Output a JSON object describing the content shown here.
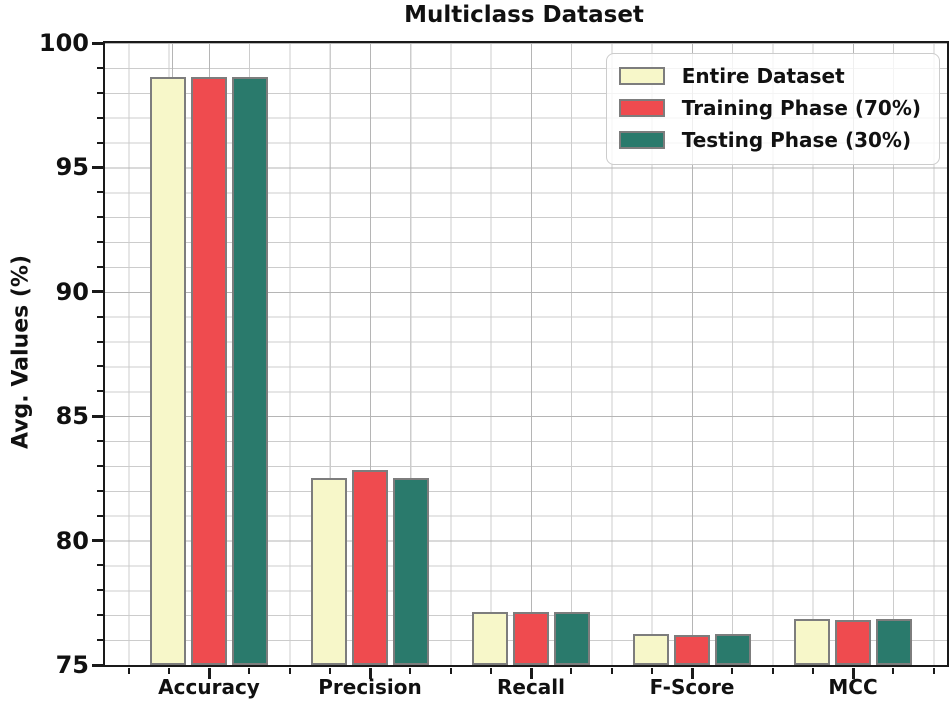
{
  "chart_data": {
    "type": "bar",
    "title": "Multiclass Dataset",
    "xlabel": "",
    "ylabel": "Avg. Values (%)",
    "categories": [
      "Accuracy",
      "Precision",
      "Recall",
      "F-Score",
      "MCC"
    ],
    "series": [
      {
        "name": "Entire Dataset",
        "color": "#f7f7c9",
        "values": [
          98.65,
          82.5,
          77.15,
          76.25,
          76.85
        ]
      },
      {
        "name": "Training Phase (70%)",
        "color": "#ef4b4f",
        "values": [
          98.65,
          82.85,
          77.15,
          76.2,
          76.8
        ]
      },
      {
        "name": "Testing Phase (30%)",
        "color": "#2a7a6c",
        "values": [
          98.65,
          82.5,
          77.15,
          76.25,
          76.85
        ]
      }
    ],
    "ylim": [
      75,
      100
    ],
    "yticks": [
      75,
      80,
      85,
      90,
      95,
      100
    ],
    "grid": true,
    "legend_position": "upper right",
    "bar_edge_color": "#7d7d7d"
  }
}
